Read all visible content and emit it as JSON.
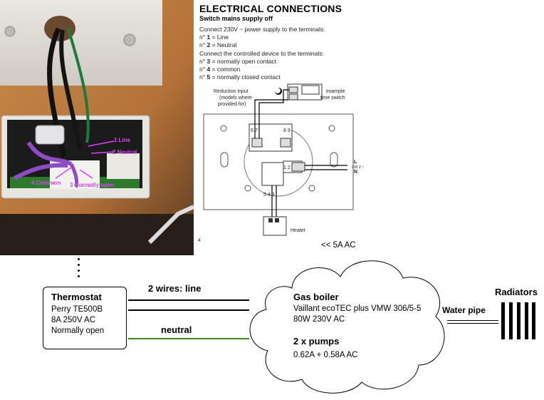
{
  "photo": {
    "labels": {
      "line": "1 Line",
      "neutral": "2 Neutral",
      "common": "4 Common",
      "normally_open": "3 Normally open"
    }
  },
  "manual": {
    "title": "ELECTRICAL CONNECTIONS",
    "subtitle": "Switch mains supply off",
    "lines": [
      {
        "prefix": "",
        "bold": "",
        "text": "Connect 230V ~ power supply to the terminals:"
      },
      {
        "prefix": "n° ",
        "bold": "1",
        "text": " = Line"
      },
      {
        "prefix": "n° ",
        "bold": "2",
        "text": " = Neutral"
      },
      {
        "prefix": "",
        "bold": "",
        "text": "Connect the controlled device to the terminals:"
      },
      {
        "prefix": "n° ",
        "bold": "3",
        "text": " = normally open contact"
      },
      {
        "prefix": "n° ",
        "bold": "4",
        "text": " = common"
      },
      {
        "prefix": "n° ",
        "bold": "5",
        "text": " = normally closed contact"
      }
    ],
    "wiring": {
      "reduction_input": "Reduction input",
      "reduction_note_1": "(models where",
      "reduction_note_2": "provided for)",
      "example_1": "example",
      "example_2": "time switch",
      "terminals_top": "6 7",
      "terminals_top_right": "8 9",
      "terminals_bottom": "5 4 3",
      "terminals_side": "1 2",
      "l_label": "L",
      "voltage_label": "230 V ~",
      "n_label": "N",
      "heater_label": "Heater",
      "page_number": "4"
    }
  },
  "diagram": {
    "thermostat": {
      "title": "Thermostat",
      "model": "Perry TE500B",
      "rating": "8A 250V AC",
      "contact": "Normally open"
    },
    "wires_label": "2 wires: line",
    "neutral_label": "neutral",
    "current_label": "<< 5A AC",
    "boiler": {
      "title": "Gas boiler",
      "model": "Vaillant ecoTEC plus VMW 306/5-5",
      "spec": "80W 230V AC"
    },
    "pumps": {
      "title": "2 x pumps",
      "spec": "0.62A + 0.58A AC"
    },
    "pipe_label": "Water pipe",
    "radiators_label": "Radiators"
  },
  "colors": {
    "neutral_wire": "#3a8a1e",
    "photo_labels": "#e040ff"
  }
}
